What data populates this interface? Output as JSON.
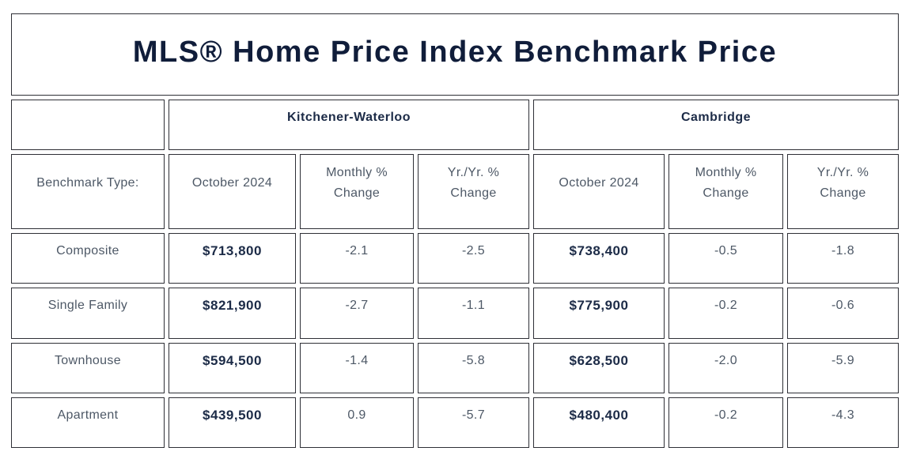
{
  "title": "MLS® Home Price Index Benchmark Price",
  "regions": [
    "Kitchener-Waterloo",
    "Cambridge"
  ],
  "columns": {
    "benchmark_type": "Benchmark Type:",
    "kw": {
      "period": "October 2024",
      "monthly_change": "Monthly % Change",
      "yr_change": "Yr./Yr. % Change"
    },
    "cambridge": {
      "period": "October 2024",
      "monthly_change": "Monthly % Change",
      "yr_change": "Yr./Yr. % Change"
    }
  },
  "rows": [
    {
      "label": "Composite",
      "kw": {
        "price": "$713,800",
        "monthly_change": "-2.1",
        "yr_change": "-2.5"
      },
      "cambridge": {
        "price": "$738,400",
        "monthly_change": "-0.5",
        "yr_change": "-1.8"
      }
    },
    {
      "label": "Single Family",
      "kw": {
        "price": "$821,900",
        "monthly_change": "-2.7",
        "yr_change": "-1.1"
      },
      "cambridge": {
        "price": "$775,900",
        "monthly_change": "-0.2",
        "yr_change": "-0.6"
      }
    },
    {
      "label": "Townhouse",
      "kw": {
        "price": "$594,500",
        "monthly_change": "-1.4",
        "yr_change": "-5.8"
      },
      "cambridge": {
        "price": "$628,500",
        "monthly_change": "-2.0",
        "yr_change": "-5.9"
      }
    },
    {
      "label": "Apartment",
      "kw": {
        "price": "$439,500",
        "monthly_change": "0.9",
        "yr_change": "-5.7"
      },
      "cambridge": {
        "price": "$480,400",
        "monthly_change": "-0.2",
        "yr_change": "-4.3"
      }
    }
  ],
  "colors": {
    "title_text": "#101d3a",
    "bold_text": "#1c2b47",
    "body_text": "#4d5866",
    "border": "#2e2f36",
    "background": "#ffffff"
  },
  "chart_data": {
    "type": "table",
    "title": "MLS® Home Price Index Benchmark Price",
    "column_groups": [
      "",
      "Kitchener-Waterloo",
      "Kitchener-Waterloo",
      "Kitchener-Waterloo",
      "Cambridge",
      "Cambridge",
      "Cambridge"
    ],
    "columns": [
      "Benchmark Type:",
      "October 2024",
      "Monthly % Change",
      "Yr./Yr. % Change",
      "October 2024",
      "Monthly % Change",
      "Yr./Yr. % Change"
    ],
    "rows": [
      [
        "Composite",
        713800,
        -2.1,
        -2.5,
        738400,
        -0.5,
        -1.8
      ],
      [
        "Single Family",
        821900,
        -2.7,
        -1.1,
        775900,
        -0.2,
        -0.6
      ],
      [
        "Townhouse",
        594500,
        -1.4,
        -5.8,
        628500,
        -2.0,
        -5.9
      ],
      [
        "Apartment",
        439500,
        0.9,
        -5.7,
        480400,
        -0.2,
        -4.3
      ]
    ]
  }
}
